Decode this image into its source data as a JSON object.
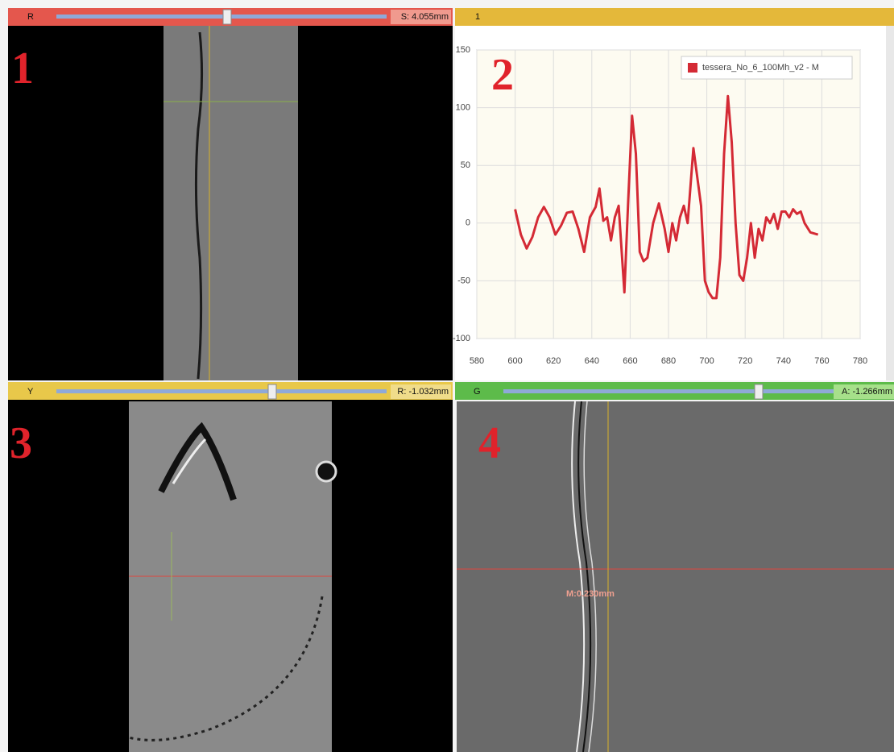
{
  "panels": [
    {
      "badge": "R",
      "number": "1",
      "offset": "S: 4.055mm"
    },
    {
      "badge": "1",
      "number": "2"
    },
    {
      "badge": "Y",
      "number": "3",
      "offset": "R: -1.032mm"
    },
    {
      "badge": "G",
      "number": "4",
      "offset": "A: -1.266mm",
      "measurement": "M:0.230mm"
    }
  ],
  "chart_data": {
    "type": "line",
    "grid": true,
    "legend": "top-right",
    "xlim": [
      580,
      780
    ],
    "xticks": [
      580,
      600,
      620,
      640,
      660,
      680,
      700,
      720,
      740,
      760,
      780
    ],
    "ylim": [
      -100,
      150
    ],
    "yticks": [
      -100,
      -50,
      0,
      50,
      100,
      150
    ],
    "series": [
      {
        "name": "tessera_No_6_100Mh_v2 - M",
        "color": "#d42a35",
        "x": [
          600,
          603,
          606,
          609,
          612,
          615,
          618,
          621,
          624,
          627,
          630,
          633,
          636,
          639,
          642,
          644,
          646,
          648,
          650,
          652,
          654,
          657,
          659,
          661,
          663,
          665,
          667,
          669,
          672,
          675,
          678,
          680,
          682,
          684,
          686,
          688,
          690,
          693,
          695,
          697,
          699,
          701,
          703,
          705,
          707,
          709,
          711,
          713,
          715,
          717,
          719,
          721,
          723,
          725,
          727,
          729,
          731,
          733,
          735,
          737,
          739,
          741,
          743,
          745,
          747,
          749,
          751,
          754,
          758
        ],
        "values": [
          12,
          -10,
          -22,
          -12,
          5,
          14,
          5,
          -10,
          -2,
          9,
          10,
          -5,
          -25,
          5,
          14,
          30,
          2,
          5,
          -15,
          5,
          15,
          -60,
          20,
          93,
          60,
          -25,
          -33,
          -30,
          0,
          17,
          -5,
          -25,
          0,
          -15,
          5,
          15,
          0,
          65,
          40,
          15,
          -50,
          -60,
          -65,
          -65,
          -30,
          60,
          110,
          70,
          0,
          -45,
          -50,
          -30,
          0,
          -30,
          -5,
          -15,
          5,
          0,
          8,
          -5,
          10,
          10,
          5,
          12,
          8,
          10,
          0,
          -8,
          -10
        ]
      }
    ]
  }
}
